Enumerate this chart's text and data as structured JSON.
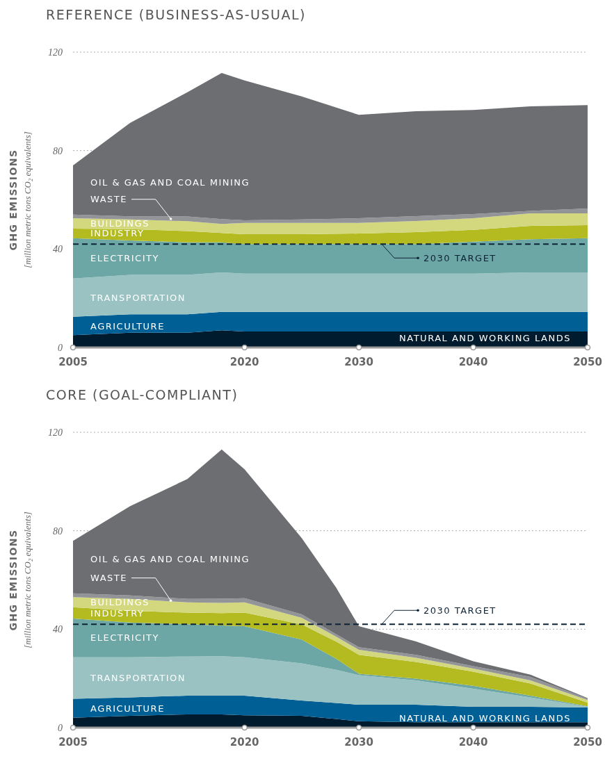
{
  "chart_data": [
    {
      "type": "area",
      "title": "REFERENCE (BUSINESS-AS-USUAL)",
      "ylabel": "GHG EMISSIONS",
      "annotations": [
        "[million metric tons CO₂ equivalents]"
      ],
      "stacked": true,
      "grid": "y",
      "x": [
        2005,
        2010,
        2015,
        2018,
        2020,
        2025,
        2030,
        2035,
        2040,
        2045,
        2050
      ],
      "xlim": [
        2005,
        2050
      ],
      "xticks": [
        2005,
        2020,
        2030,
        2040,
        2050
      ],
      "ylim": [
        0,
        120
      ],
      "yticks": [
        0,
        40,
        80,
        120
      ],
      "series": [
        {
          "name": "NATURAL AND WORKING LANDS",
          "color": "#001a2e",
          "values": [
            5,
            6,
            6,
            7,
            6.5,
            6.5,
            6.5,
            6.5,
            6.5,
            6.5,
            6.5
          ]
        },
        {
          "name": "AGRICULTURE",
          "color": "#006095",
          "values": [
            7.5,
            7.5,
            7.5,
            7.5,
            8,
            8,
            8,
            8,
            8,
            8,
            8
          ]
        },
        {
          "name": "TRANSPORTATION",
          "color": "#9ac2c2",
          "values": [
            15.5,
            16,
            16,
            16,
            15.5,
            15.5,
            15.5,
            15.5,
            15.5,
            16,
            16
          ]
        },
        {
          "name": "ELECTRICITY",
          "color": "#6ca7a6",
          "values": [
            16.4,
            14,
            13.2,
            12.2,
            12,
            12,
            12,
            12,
            13,
            13.5,
            13.9
          ]
        },
        {
          "name": "INDUSTRY",
          "color": "#b3bb20",
          "values": [
            3.9,
            4.6,
            4.6,
            3.8,
            4,
            4,
            4.3,
            4.9,
            4.8,
            5.4,
            5.3
          ]
        },
        {
          "name": "BUILDINGS",
          "color": "#d3d87e",
          "values": [
            4.2,
            3.9,
            4,
            3.7,
            4.6,
            4.6,
            4.3,
            4.5,
            4.7,
            5.1,
            4.8
          ]
        },
        {
          "name": "WASTE",
          "color": "#939498",
          "values": [
            1.5,
            1.3,
            1.9,
            2,
            1.1,
            1.4,
            1.9,
            2,
            1.7,
            1,
            2
          ]
        },
        {
          "name": "OIL & GAS AND COAL MINING",
          "color": "#6d6e72",
          "values": [
            20,
            38,
            50.5,
            59.3,
            56.8,
            50,
            42,
            42.6,
            42.3,
            42.5,
            42
          ]
        }
      ],
      "ref_lines": [
        {
          "axis": "y",
          "value": 42,
          "label": "2030 TARGET",
          "color": "#0d2236",
          "line_style": "dashed"
        }
      ]
    },
    {
      "type": "area",
      "title": "CORE (GOAL-COMPLIANT)",
      "ylabel": "GHG EMISSIONS",
      "annotations": [
        "[million metric tons CO₂ equivalents]"
      ],
      "stacked": true,
      "grid": "y",
      "x": [
        2005,
        2010,
        2015,
        2018,
        2020,
        2025,
        2028,
        2030,
        2035,
        2040,
        2045,
        2050
      ],
      "xlim": [
        2005,
        2050
      ],
      "xticks": [
        2005,
        2020,
        2030,
        2040,
        2050
      ],
      "ylim": [
        0,
        120
      ],
      "yticks": [
        0,
        40,
        80,
        120
      ],
      "series": [
        {
          "name": "NATURAL AND WORKING LANDS",
          "color": "#001a2e",
          "values": [
            4,
            4.8,
            5.4,
            5.4,
            5,
            4.8,
            3.5,
            2.6,
            2.2,
            2.2,
            2.2,
            2.2
          ]
        },
        {
          "name": "AGRICULTURE",
          "color": "#006095",
          "values": [
            7.7,
            7.5,
            7.6,
            7.6,
            8,
            6.2,
            6.5,
            6.7,
            7.1,
            6.3,
            6.3,
            6
          ]
        },
        {
          "name": "TRANSPORTATION",
          "color": "#9ac2c2",
          "values": [
            16.9,
            16.3,
            15.9,
            16,
            15.6,
            15.1,
            13.5,
            12,
            9.9,
            7.3,
            3.8,
            0.3
          ]
        },
        {
          "name": "ELECTRICITY",
          "color": "#6ca7a6",
          "values": [
            15.7,
            14.1,
            13.1,
            12.5,
            12.6,
            9.7,
            4.5,
            0.6,
            0.7,
            1.2,
            0.7,
            0.2
          ]
        },
        {
          "name": "INDUSTRY",
          "color": "#b3bb20",
          "values": [
            4.6,
            4.8,
            4.7,
            5,
            5.5,
            6.1,
            7,
            7.7,
            6.8,
            5.7,
            4.9,
            1.5
          ]
        },
        {
          "name": "BUILDINGS",
          "color": "#d3d87e",
          "values": [
            4.1,
            4.8,
            4.2,
            4.2,
            4.2,
            2.7,
            2,
            2,
            1.7,
            1.3,
            1.3,
            1
          ]
        },
        {
          "name": "WASTE",
          "color": "#939498",
          "values": [
            1.6,
            1.4,
            1.4,
            1.7,
            1.7,
            1.4,
            1,
            1.1,
            1.2,
            1,
            1.4,
            0.5
          ]
        },
        {
          "name": "OIL & GAS AND COAL MINING",
          "color": "#6d6e72",
          "values": [
            21.3,
            36.3,
            48.7,
            60.6,
            52.4,
            31,
            19,
            8.5,
            5.4,
            2,
            0.9,
            0.3
          ]
        }
      ],
      "ref_lines": [
        {
          "axis": "y",
          "value": 42,
          "label": "2030 TARGET",
          "color": "#0d2236",
          "line_style": "dashed"
        }
      ]
    }
  ]
}
